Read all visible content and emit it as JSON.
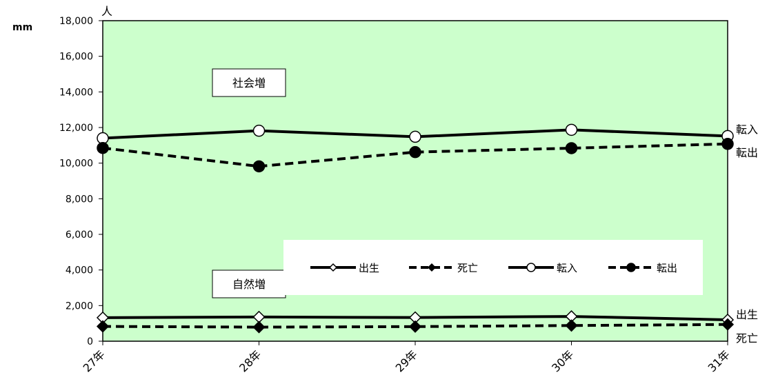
{
  "chart_data": {
    "type": "line",
    "unit_label": "人",
    "corner_mark": "mm",
    "categories": [
      "27年",
      "28年",
      "29年",
      "30年",
      "31年"
    ],
    "ylim": [
      0,
      18000
    ],
    "yticks": [
      "0",
      "2,000",
      "4,000",
      "6,000",
      "8,000",
      "10,000",
      "12,000",
      "14,000",
      "16,000",
      "18,000"
    ],
    "series": [
      {
        "name": "出生",
        "values": [
          1320,
          1360,
          1330,
          1390,
          1200
        ],
        "style": "solid",
        "marker": "open-diamond"
      },
      {
        "name": "死亡",
        "values": [
          830,
          790,
          820,
          880,
          940
        ],
        "style": "dashed",
        "marker": "filled-diamond"
      },
      {
        "name": "転入",
        "values": [
          11400,
          11820,
          11480,
          11870,
          11520
        ],
        "style": "solid",
        "marker": "open-circle"
      },
      {
        "name": "転出",
        "values": [
          10850,
          9820,
          10620,
          10840,
          11080
        ],
        "style": "dashed",
        "marker": "filled-circle"
      }
    ],
    "annotations": [
      "社会増",
      "自然増"
    ],
    "legend_placement": "inside-bottom-center",
    "colors": {
      "plot_bg": "#ccffcc",
      "line": "#000000"
    }
  }
}
